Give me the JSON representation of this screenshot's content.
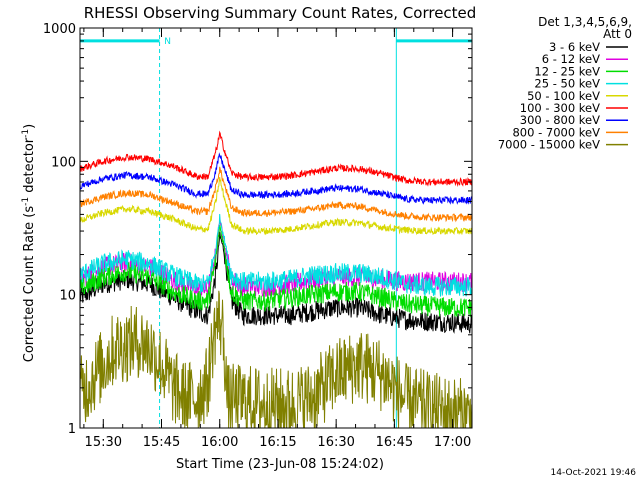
{
  "chart_data": {
    "type": "line",
    "title": "RHESSI Observing Summary Count Rates, Corrected",
    "xlabel": "Start Time (23-Jun-08 15:24:02)",
    "ylabel_main": "Corrected Count Rate (s",
    "ylabel_sup1": "-1",
    "ylabel_mid": " detector",
    "ylabel_sup2": "-1",
    "ylabel_end": ")",
    "yscale": "log",
    "ylim": [
      1,
      1000
    ],
    "y_ticks": [
      "1",
      "10",
      "100",
      "1000"
    ],
    "x_range_minutes": [
      0,
      101
    ],
    "x_ticks": [
      {
        "label": "15:30",
        "min": 6
      },
      {
        "label": "15:45",
        "min": 21
      },
      {
        "label": "16:00",
        "min": 36
      },
      {
        "label": "16:15",
        "min": 51
      },
      {
        "label": "16:30",
        "min": 66
      },
      {
        "label": "16:45",
        "min": 81
      },
      {
        "label": "17:00",
        "min": 96
      }
    ],
    "legend_header": [
      "Det 1,3,4,5,6,9,",
      "Att 0"
    ],
    "legend_position": "right",
    "series": [
      {
        "name": "3 - 6 keV",
        "color": "#000000",
        "points": [
          [
            0,
            9.5
          ],
          [
            6,
            12
          ],
          [
            12,
            13
          ],
          [
            18,
            12
          ],
          [
            24,
            9.5
          ],
          [
            30,
            7.5
          ],
          [
            33,
            7
          ],
          [
            35,
            14
          ],
          [
            36,
            28
          ],
          [
            37,
            22
          ],
          [
            39,
            9
          ],
          [
            42,
            7
          ],
          [
            48,
            7
          ],
          [
            54,
            7
          ],
          [
            60,
            7.5
          ],
          [
            66,
            8
          ],
          [
            72,
            8
          ],
          [
            78,
            7
          ],
          [
            84,
            6.5
          ],
          [
            90,
            6.3
          ],
          [
            96,
            6.2
          ],
          [
            101,
            6
          ]
        ]
      },
      {
        "name": "6 - 12 keV",
        "color": "#e000e0",
        "points": [
          [
            0,
            13
          ],
          [
            6,
            16
          ],
          [
            12,
            17.5
          ],
          [
            18,
            16
          ],
          [
            24,
            13
          ],
          [
            30,
            11
          ],
          [
            33,
            11
          ],
          [
            35,
            20
          ],
          [
            36,
            37
          ],
          [
            37,
            26
          ],
          [
            39,
            13
          ],
          [
            42,
            11.5
          ],
          [
            48,
            11.5
          ],
          [
            54,
            12
          ],
          [
            60,
            13
          ],
          [
            66,
            13.5
          ],
          [
            72,
            13.5
          ],
          [
            78,
            13
          ],
          [
            84,
            12.5
          ],
          [
            90,
            12.5
          ],
          [
            96,
            12.5
          ],
          [
            101,
            12.5
          ]
        ]
      },
      {
        "name": "12 - 25 keV",
        "color": "#00dd00",
        "points": [
          [
            0,
            11
          ],
          [
            6,
            13.5
          ],
          [
            12,
            15
          ],
          [
            18,
            13.5
          ],
          [
            24,
            10.5
          ],
          [
            30,
            9
          ],
          [
            33,
            9
          ],
          [
            35,
            18
          ],
          [
            36,
            33
          ],
          [
            37,
            24
          ],
          [
            39,
            10.5
          ],
          [
            42,
            9
          ],
          [
            48,
            9
          ],
          [
            54,
            9.5
          ],
          [
            60,
            10
          ],
          [
            66,
            10.5
          ],
          [
            72,
            10.5
          ],
          [
            78,
            9.5
          ],
          [
            84,
            8.5
          ],
          [
            90,
            8.2
          ],
          [
            96,
            8
          ],
          [
            101,
            8
          ]
        ]
      },
      {
        "name": "25 - 50 keV",
        "color": "#00e0e0",
        "points": [
          [
            0,
            14
          ],
          [
            6,
            17
          ],
          [
            12,
            18.5
          ],
          [
            18,
            17
          ],
          [
            24,
            14
          ],
          [
            30,
            12
          ],
          [
            33,
            12
          ],
          [
            35,
            22
          ],
          [
            36,
            38
          ],
          [
            37,
            28
          ],
          [
            39,
            14
          ],
          [
            42,
            12.5
          ],
          [
            48,
            12.5
          ],
          [
            54,
            13
          ],
          [
            60,
            14
          ],
          [
            66,
            14.5
          ],
          [
            72,
            14.5
          ],
          [
            78,
            13.5
          ],
          [
            84,
            12
          ],
          [
            90,
            11.5
          ],
          [
            96,
            11.5
          ],
          [
            101,
            11.5
          ]
        ]
      },
      {
        "name": "50 - 100 keV",
        "color": "#d8d800",
        "points": [
          [
            0,
            36
          ],
          [
            6,
            41
          ],
          [
            12,
            44
          ],
          [
            18,
            42
          ],
          [
            24,
            37
          ],
          [
            30,
            31
          ],
          [
            33,
            31
          ],
          [
            35,
            50
          ],
          [
            36,
            74
          ],
          [
            37,
            56
          ],
          [
            39,
            34
          ],
          [
            42,
            30
          ],
          [
            48,
            30
          ],
          [
            54,
            31
          ],
          [
            60,
            33
          ],
          [
            66,
            35
          ],
          [
            72,
            34.5
          ],
          [
            78,
            32
          ],
          [
            84,
            30.5
          ],
          [
            90,
            30
          ],
          [
            96,
            30
          ],
          [
            101,
            30
          ]
        ]
      },
      {
        "name": "100 - 300 keV",
        "color": "#ff0000",
        "points": [
          [
            0,
            88
          ],
          [
            6,
            100
          ],
          [
            12,
            108
          ],
          [
            18,
            104
          ],
          [
            24,
            92
          ],
          [
            30,
            77
          ],
          [
            33,
            77
          ],
          [
            35,
            118
          ],
          [
            36,
            160
          ],
          [
            37,
            128
          ],
          [
            39,
            82
          ],
          [
            42,
            76
          ],
          [
            48,
            76
          ],
          [
            54,
            78
          ],
          [
            60,
            83
          ],
          [
            66,
            89
          ],
          [
            72,
            88
          ],
          [
            78,
            80
          ],
          [
            84,
            72
          ],
          [
            90,
            70
          ],
          [
            96,
            70
          ],
          [
            101,
            70
          ]
        ]
      },
      {
        "name": "300 - 800 keV",
        "color": "#0000ff",
        "points": [
          [
            0,
            65
          ],
          [
            6,
            74
          ],
          [
            12,
            79
          ],
          [
            18,
            76
          ],
          [
            24,
            67
          ],
          [
            30,
            57
          ],
          [
            33,
            57
          ],
          [
            35,
            85
          ],
          [
            36,
            112
          ],
          [
            37,
            92
          ],
          [
            39,
            61
          ],
          [
            42,
            56
          ],
          [
            48,
            56
          ],
          [
            54,
            57
          ],
          [
            60,
            60
          ],
          [
            66,
            63
          ],
          [
            72,
            62
          ],
          [
            78,
            57
          ],
          [
            84,
            52
          ],
          [
            90,
            51
          ],
          [
            96,
            51
          ],
          [
            101,
            51
          ]
        ]
      },
      {
        "name": "800 - 7000 keV",
        "color": "#ff8000",
        "points": [
          [
            0,
            48
          ],
          [
            6,
            54
          ],
          [
            12,
            58
          ],
          [
            18,
            56
          ],
          [
            24,
            49
          ],
          [
            30,
            42
          ],
          [
            33,
            42
          ],
          [
            35,
            64
          ],
          [
            36,
            88
          ],
          [
            37,
            70
          ],
          [
            39,
            45
          ],
          [
            42,
            41
          ],
          [
            48,
            41
          ],
          [
            54,
            42
          ],
          [
            60,
            44
          ],
          [
            66,
            47
          ],
          [
            72,
            46
          ],
          [
            78,
            42
          ],
          [
            84,
            39
          ],
          [
            90,
            38
          ],
          [
            96,
            38
          ],
          [
            101,
            38
          ]
        ]
      },
      {
        "name": "7000 - 15000 keV",
        "color": "#808000",
        "points": [
          [
            0,
            1.8
          ],
          [
            6,
            3
          ],
          [
            9,
            4
          ],
          [
            12,
            4.2
          ],
          [
            15,
            4.5
          ],
          [
            18,
            4
          ],
          [
            21,
            3
          ],
          [
            24,
            2
          ],
          [
            27,
            1.7
          ],
          [
            30,
            1.7
          ],
          [
            33,
            2.2
          ],
          [
            34,
            4
          ],
          [
            35,
            6
          ],
          [
            36,
            6.5
          ],
          [
            37,
            5
          ],
          [
            38,
            1.6
          ],
          [
            42,
            1.6
          ],
          [
            48,
            1.5
          ],
          [
            54,
            1.5
          ],
          [
            60,
            1.7
          ],
          [
            66,
            2.5
          ],
          [
            72,
            3
          ],
          [
            78,
            2.5
          ],
          [
            84,
            1.6
          ],
          [
            90,
            1.4
          ],
          [
            96,
            1.3
          ],
          [
            101,
            1.2
          ]
        ]
      }
    ],
    "attenuator_bars": [
      {
        "x0": 0,
        "x1": 20.5,
        "y": 800,
        "color": "#00e0e0"
      },
      {
        "x0": 81.5,
        "x1": 101,
        "y": 800,
        "color": "#00e0e0"
      }
    ],
    "night_boundaries_min": [
      0,
      20.5,
      81.5,
      101
    ],
    "flag_label": "N",
    "flag_color": "#00e0e0",
    "footer_date": "14-Oct-2021 19:46"
  }
}
